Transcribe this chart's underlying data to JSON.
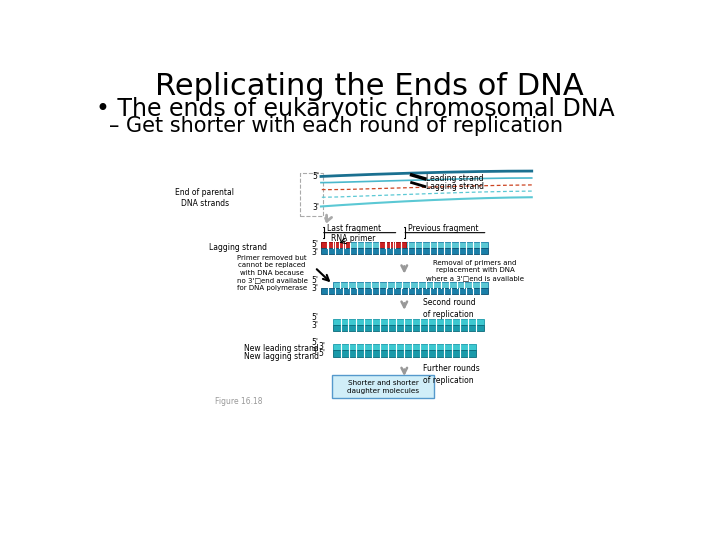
{
  "title": "Replicating the Ends of DNA",
  "bullet1": "• The ends of eukaryotic chromosomal DNA",
  "bullet2": "– Get shorter with each round of replication",
  "bg_color": "#ffffff",
  "title_fontsize": 22,
  "bullet1_fontsize": 17,
  "bullet2_fontsize": 15,
  "light_blue": "#5bc8d4",
  "dark_blue": "#1a7fa8",
  "teal_top": "#3dc8d0",
  "teal_bot": "#1a9aaa",
  "red": "#cc2222",
  "gray": "#999999",
  "black": "#000000",
  "ann_fontsize": 5.5,
  "label_fontsize": 5.5
}
